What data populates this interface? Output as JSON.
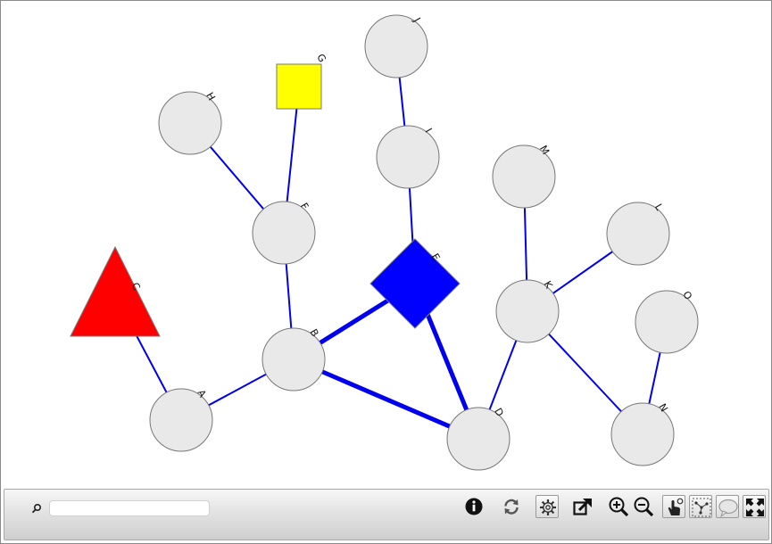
{
  "graph": {
    "nodes": [
      {
        "id": "A",
        "label": "A",
        "shape": "circle",
        "color": "#e9e9e9"
      },
      {
        "id": "B",
        "label": "B",
        "shape": "circle",
        "color": "#e9e9e9"
      },
      {
        "id": "C",
        "label": "C",
        "shape": "triangle",
        "color": "#ff0000"
      },
      {
        "id": "D",
        "label": "D",
        "shape": "circle",
        "color": "#e9e9e9"
      },
      {
        "id": "E",
        "label": "E",
        "shape": "diamond",
        "color": "#0000ff"
      },
      {
        "id": "F",
        "label": "F",
        "shape": "circle",
        "color": "#e9e9e9"
      },
      {
        "id": "G",
        "label": "G",
        "shape": "square",
        "color": "#ffff00"
      },
      {
        "id": "H",
        "label": "H",
        "shape": "circle",
        "color": "#e9e9e9"
      },
      {
        "id": "I",
        "label": "I",
        "shape": "circle",
        "color": "#e9e9e9"
      },
      {
        "id": "J",
        "label": "J",
        "shape": "circle",
        "color": "#e9e9e9"
      },
      {
        "id": "K",
        "label": "K",
        "shape": "circle",
        "color": "#e9e9e9"
      },
      {
        "id": "L",
        "label": "L",
        "shape": "circle",
        "color": "#e9e9e9"
      },
      {
        "id": "M",
        "label": "M",
        "shape": "circle",
        "color": "#e9e9e9"
      },
      {
        "id": "N",
        "label": "N",
        "shape": "circle",
        "color": "#e9e9e9"
      },
      {
        "id": "O",
        "label": "O",
        "shape": "circle",
        "color": "#e9e9e9"
      }
    ],
    "edges": [
      {
        "source": "A",
        "target": "C",
        "weight": "thin"
      },
      {
        "source": "A",
        "target": "B",
        "weight": "thin"
      },
      {
        "source": "B",
        "target": "F",
        "weight": "thin"
      },
      {
        "source": "F",
        "target": "H",
        "weight": "thin"
      },
      {
        "source": "F",
        "target": "G",
        "weight": "thin"
      },
      {
        "source": "B",
        "target": "E",
        "weight": "thick"
      },
      {
        "source": "B",
        "target": "D",
        "weight": "thick"
      },
      {
        "source": "E",
        "target": "D",
        "weight": "thick"
      },
      {
        "source": "E",
        "target": "I",
        "weight": "thin"
      },
      {
        "source": "I",
        "target": "J",
        "weight": "thin"
      },
      {
        "source": "D",
        "target": "K",
        "weight": "thin"
      },
      {
        "source": "K",
        "target": "M",
        "weight": "thin"
      },
      {
        "source": "K",
        "target": "L",
        "weight": "thin"
      },
      {
        "source": "K",
        "target": "N",
        "weight": "thin"
      },
      {
        "source": "N",
        "target": "O",
        "weight": "thin"
      }
    ],
    "edge_color": "#0000ee",
    "node_stroke": "#777777"
  },
  "toolbar": {
    "search_value": "",
    "buttons": [
      {
        "name": "info-button",
        "icon": "info-icon"
      },
      {
        "name": "refresh-button",
        "icon": "refresh-icon"
      },
      {
        "name": "settings-button",
        "icon": "gear-icon"
      },
      {
        "name": "export-button",
        "icon": "external-link-icon"
      },
      {
        "name": "zoom-in-button",
        "icon": "zoom-in-icon"
      },
      {
        "name": "zoom-out-button",
        "icon": "zoom-out-icon"
      },
      {
        "name": "pan-button",
        "icon": "hand-pointer-icon"
      },
      {
        "name": "select-button",
        "icon": "node-select-icon"
      },
      {
        "name": "tooltip-button",
        "icon": "speech-bubble-icon"
      },
      {
        "name": "fullscreen-button",
        "icon": "fullscreen-icon"
      }
    ]
  }
}
